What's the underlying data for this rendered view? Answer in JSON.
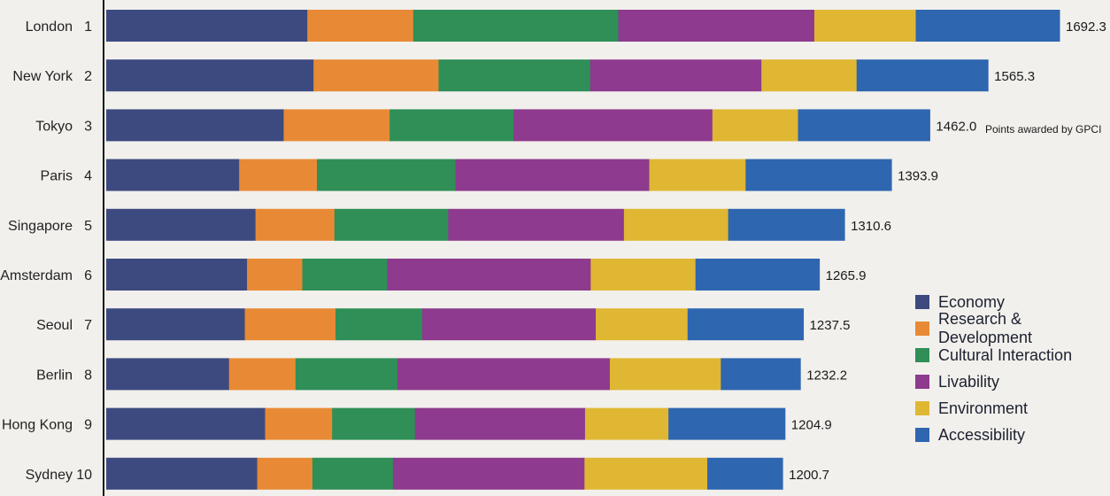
{
  "chart_data": {
    "type": "bar",
    "orientation": "horizontal",
    "stacked": true,
    "categories": [
      "London",
      "New York",
      "Tokyo",
      "Paris",
      "Singapore",
      "Amsterdam",
      "Seoul",
      "Berlin",
      "Hong Kong",
      "Sydney"
    ],
    "ranks": [
      "1",
      "2",
      "3",
      "4",
      "5",
      "6",
      "7",
      "8",
      "9",
      "10"
    ],
    "totals": [
      1692.3,
      1565.3,
      1462.0,
      1393.9,
      1310.6,
      1265.9,
      1237.5,
      1232.2,
      1204.9,
      1200.7
    ],
    "total_labels": [
      "1692.3",
      "1565.3",
      "1462.0",
      "1393.9",
      "1310.6",
      "1265.9",
      "1237.5",
      "1232.2",
      "1204.9",
      "1200.7"
    ],
    "annotation": "Points awarded by GPCI",
    "xlim": [
      0,
      1692.3
    ],
    "series": [
      {
        "name": "Economy",
        "color": "#3d4a80",
        "values": [
          357,
          368,
          315,
          236,
          265,
          250,
          246,
          218,
          282,
          268
        ]
      },
      {
        "name": "Research & Development",
        "color": "#e88a35",
        "values": [
          188,
          222,
          188,
          138,
          140,
          98,
          161,
          118,
          119,
          98
        ]
      },
      {
        "name": "Cultural Interaction",
        "color": "#2f8f57",
        "values": [
          364,
          269,
          220,
          246,
          202,
          151,
          154,
          181,
          147,
          143
        ]
      },
      {
        "name": "Livability",
        "color": "#8e3a8e",
        "values": [
          348,
          304,
          353,
          344,
          312,
          361,
          308,
          377,
          302,
          340
        ]
      },
      {
        "name": "Environment",
        "color": "#e0b733",
        "values": [
          180,
          169,
          152,
          171,
          185,
          186,
          163,
          197,
          148,
          218
        ]
      },
      {
        "name": "Accessibility",
        "color": "#2e66b0",
        "values": [
          255.3,
          233.3,
          234.0,
          258.9,
          206.6,
          219.9,
          205.5,
          141.2,
          206.9,
          133.7
        ]
      }
    ],
    "legend_position": "bottom-right",
    "grid": false
  }
}
